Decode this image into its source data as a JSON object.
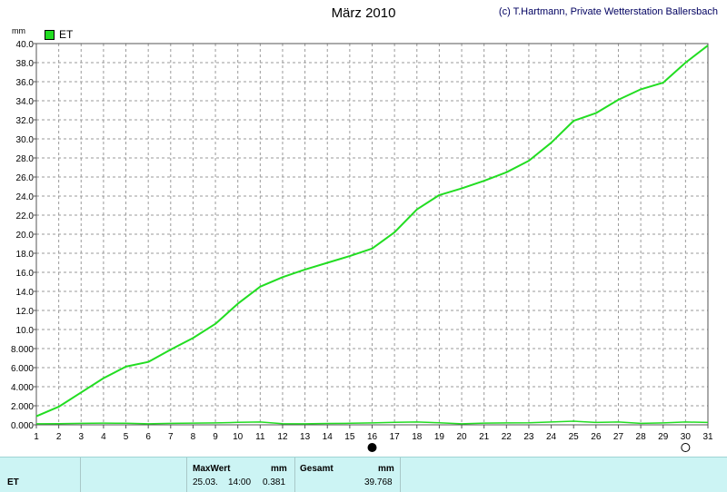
{
  "chart_data": {
    "type": "line",
    "title": "März 2010",
    "credit": "(c) T.Hartmann, Private Wetterstation Ballersbach",
    "ylabel": "mm",
    "ylim": [
      0,
      40
    ],
    "xlim": [
      1,
      31
    ],
    "y_ticks": [
      "0.000",
      "2.000",
      "4.000",
      "6.000",
      "8.000",
      "10.0",
      "12.0",
      "14.0",
      "16.0",
      "18.0",
      "20.0",
      "22.0",
      "24.0",
      "26.0",
      "28.0",
      "30.0",
      "32.0",
      "34.0",
      "36.0",
      "38.0",
      "40.0"
    ],
    "x_ticks": [
      "1",
      "2",
      "3",
      "4",
      "5",
      "6",
      "7",
      "8",
      "9",
      "10",
      "11",
      "12",
      "13",
      "14",
      "15",
      "16",
      "17",
      "18",
      "19",
      "20",
      "21",
      "22",
      "23",
      "24",
      "25",
      "26",
      "27",
      "28",
      "29",
      "30",
      "31"
    ],
    "legend": "top-left",
    "grid": true,
    "series": [
      {
        "name": "ET",
        "color": "#22dd22",
        "x": [
          1,
          2,
          3,
          4,
          5,
          6,
          7,
          8,
          9,
          10,
          11,
          12,
          13,
          14,
          15,
          16,
          17,
          18,
          19,
          20,
          21,
          22,
          23,
          24,
          25,
          26,
          27,
          28,
          29,
          30,
          31
        ],
        "values": [
          0.9,
          1.9,
          3.4,
          4.9,
          6.1,
          6.6,
          7.9,
          9.1,
          10.6,
          12.7,
          14.5,
          15.5,
          16.3,
          17.0,
          17.7,
          18.5,
          20.2,
          22.6,
          24.1,
          24.8,
          25.6,
          26.5,
          27.7,
          29.6,
          31.9,
          32.7,
          34.1,
          35.2,
          35.9,
          38.0,
          39.8
        ]
      },
      {
        "name": "",
        "color": "#22dd22",
        "x": [
          1,
          2,
          3,
          4,
          5,
          6,
          7,
          8,
          9,
          10,
          11,
          12,
          13,
          14,
          15,
          16,
          17,
          18,
          19,
          20,
          21,
          22,
          23,
          24,
          25,
          26,
          27,
          28,
          29,
          30,
          31
        ],
        "values": [
          0.1,
          0.12,
          0.15,
          0.18,
          0.16,
          0.1,
          0.15,
          0.18,
          0.2,
          0.26,
          0.3,
          0.12,
          0.1,
          0.14,
          0.16,
          0.2,
          0.27,
          0.3,
          0.22,
          0.1,
          0.18,
          0.2,
          0.22,
          0.3,
          0.38,
          0.25,
          0.3,
          0.15,
          0.2,
          0.3,
          0.25
        ]
      }
    ],
    "moon_phases": [
      {
        "day": 16,
        "phase": "new-moon"
      },
      {
        "day": 30,
        "phase": "full-moon"
      }
    ]
  },
  "footer": {
    "row_label": "ET",
    "max_label": "MaxWert",
    "max_unit": "mm",
    "max_date": "25.03.",
    "max_time": "14:00",
    "max_value": "0.381",
    "total_label": "Gesamt",
    "total_unit": "mm",
    "total_value": "39.768"
  }
}
